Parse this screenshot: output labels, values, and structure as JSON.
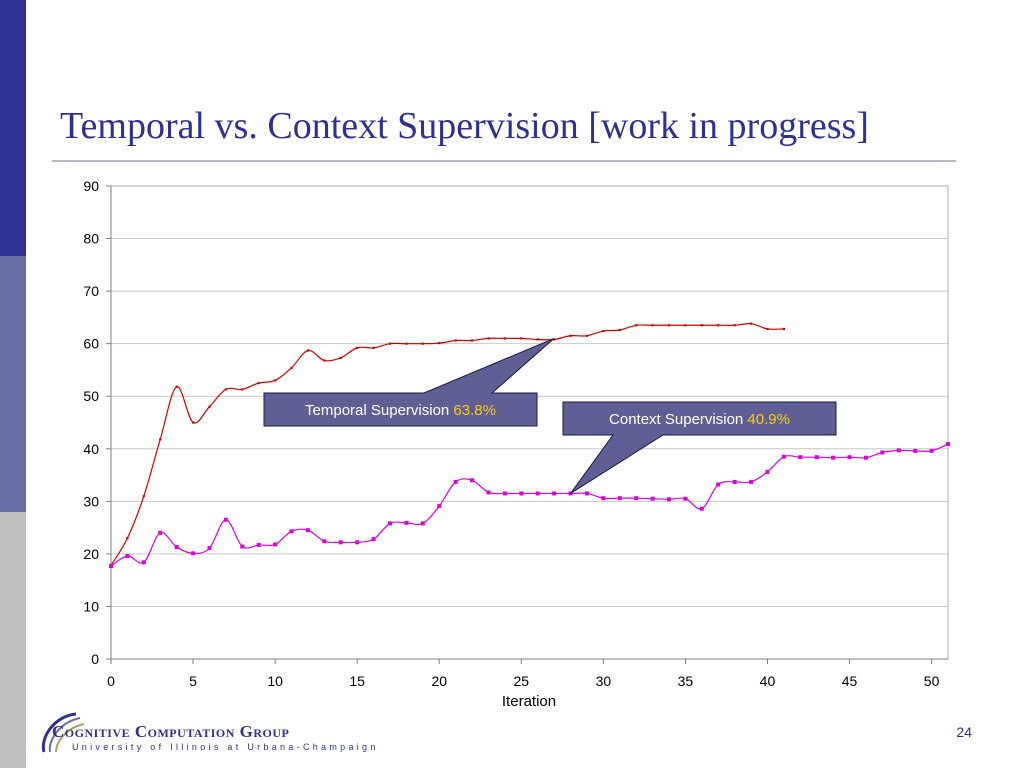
{
  "slide": {
    "title": "Temporal vs. Context Supervision [work in progress]",
    "page_number": "24",
    "logo": {
      "name": "Cognitive Computation Group",
      "subtitle": "University of Illinois at Urbana-Champaign"
    }
  },
  "colors": {
    "sidebar_top": "#2f3192",
    "sidebar_middle": "#6c6ea6",
    "sidebar_bottom": "#c0c0c0",
    "title": "#2f3192",
    "temporal_series": "#cc0000",
    "context_series": "#dd00dd",
    "callout_fill": "#5f5f96",
    "callout_value": "#ffcc00"
  },
  "chart_data": {
    "type": "line",
    "title": "",
    "xlabel": "Iteration",
    "ylabel": "",
    "xlim": [
      0,
      51
    ],
    "ylim": [
      0,
      90
    ],
    "xticks": [
      0,
      5,
      10,
      15,
      20,
      25,
      30,
      35,
      40,
      45,
      50
    ],
    "yticks": [
      0,
      10,
      20,
      30,
      40,
      50,
      60,
      70,
      80,
      90
    ],
    "grid": "horizontal",
    "legend": "none",
    "series": [
      {
        "key": "temporal",
        "color": "#cc0000",
        "marker": "small-square",
        "x": [
          0,
          1,
          2,
          3,
          4,
          5,
          6,
          7,
          8,
          9,
          10,
          11,
          12,
          13,
          14,
          15,
          16,
          17,
          18,
          19,
          20,
          21,
          22,
          23,
          24,
          25,
          26,
          27,
          28,
          29,
          30,
          31,
          32,
          33,
          34,
          35,
          36,
          37,
          38,
          39,
          40,
          41
        ],
        "y": [
          17.8,
          23,
          31,
          41.8,
          51.8,
          45,
          48,
          51.3,
          51.3,
          52.5,
          53,
          55.4,
          58.7,
          56.8,
          57.3,
          59.2,
          59.2,
          60,
          60,
          60,
          60.1,
          60.6,
          60.6,
          61,
          61,
          61,
          60.8,
          60.8,
          61.5,
          61.5,
          62.4,
          62.6,
          63.5,
          63.5,
          63.5,
          63.5,
          63.5,
          63.5,
          63.5,
          63.8,
          62.8,
          62.8
        ]
      },
      {
        "key": "context",
        "color": "#dd00dd",
        "marker": "square",
        "x": [
          0,
          1,
          2,
          3,
          4,
          5,
          6,
          7,
          8,
          9,
          10,
          11,
          12,
          13,
          14,
          15,
          16,
          17,
          18,
          19,
          20,
          21,
          22,
          23,
          24,
          25,
          26,
          27,
          28,
          29,
          30,
          31,
          32,
          33,
          34,
          35,
          36,
          37,
          38,
          39,
          40,
          41,
          42,
          43,
          44,
          45,
          46,
          47,
          48,
          49,
          50,
          51
        ],
        "y": [
          17.7,
          19.6,
          18.4,
          24,
          21.3,
          20.1,
          21.1,
          26.5,
          21.4,
          21.7,
          21.8,
          24.3,
          24.5,
          22.4,
          22.2,
          22.2,
          22.8,
          25.8,
          25.9,
          25.8,
          29.1,
          33.7,
          34,
          31.7,
          31.5,
          31.5,
          31.5,
          31.5,
          31.5,
          31.5,
          30.6,
          30.6,
          30.6,
          30.5,
          30.4,
          30.5,
          28.6,
          33.2,
          33.7,
          33.7,
          35.6,
          38.5,
          38.4,
          38.4,
          38.3,
          38.4,
          38.3,
          39.3,
          39.7,
          39.6,
          39.6,
          40.9
        ]
      }
    ],
    "annotations": [
      {
        "key": "temporal",
        "label": "Temporal Supervision",
        "value": "63.8%",
        "pointer_x": 27,
        "pointer_y": 61
      },
      {
        "key": "context",
        "label": "Context Supervision",
        "value": "40.9%",
        "pointer_x": 28,
        "pointer_y": 31.5
      }
    ]
  }
}
